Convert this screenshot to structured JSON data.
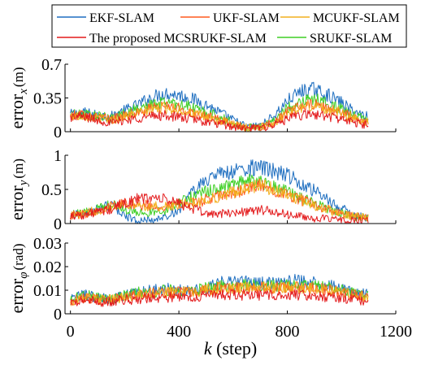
{
  "chart_data": {
    "type": "line",
    "legend": {
      "placement": "top",
      "entries": [
        {
          "label": "EKF-SLAM",
          "color": "#1f6fc0"
        },
        {
          "label": "UKF-SLAM",
          "color": "#ff5a1f"
        },
        {
          "label": "MCUKF-SLAM",
          "color": "#f2b01e"
        },
        {
          "label": "The proposed MCSRUKF-SLAM",
          "color": "#e31a1c"
        },
        {
          "label": "SRUKF-SLAM",
          "color": "#3fcf25"
        }
      ]
    },
    "x_axis": {
      "label_var": "k",
      "label_rest": " (step)",
      "range": [
        -20,
        1200
      ],
      "ticks": [
        0,
        400,
        800,
        1200
      ],
      "tick_labels": [
        "0",
        "400",
        "800",
        "1200"
      ]
    },
    "panels": [
      {
        "ylabel_main": "error",
        "ylabel_sub": "x",
        "ylabel_unit": "(m)",
        "ylim": [
          0,
          0.7
        ],
        "yticks": [
          0,
          0.35,
          0.7
        ],
        "ytick_labels": [
          "0",
          "0.35",
          "0.7"
        ],
        "x": [
          0,
          50,
          100,
          150,
          200,
          250,
          300,
          350,
          400,
          450,
          500,
          550,
          600,
          650,
          700,
          750,
          800,
          850,
          900,
          950,
          1000,
          1050,
          1100
        ],
        "series": [
          {
            "ref": "EKF-SLAM",
            "values": [
              0.18,
              0.2,
              0.17,
              0.16,
              0.22,
              0.28,
              0.36,
              0.4,
              0.38,
              0.34,
              0.28,
              0.2,
              0.12,
              0.05,
              0.06,
              0.16,
              0.32,
              0.42,
              0.44,
              0.38,
              0.3,
              0.2,
              0.16
            ]
          },
          {
            "ref": "UKF-SLAM",
            "values": [
              0.16,
              0.18,
              0.15,
              0.13,
              0.17,
              0.2,
              0.24,
              0.26,
              0.24,
              0.2,
              0.16,
              0.12,
              0.08,
              0.04,
              0.05,
              0.1,
              0.2,
              0.26,
              0.28,
              0.24,
              0.2,
              0.14,
              0.1
            ]
          },
          {
            "ref": "MCUKF-SLAM",
            "values": [
              0.16,
              0.17,
              0.14,
              0.12,
              0.16,
              0.19,
              0.23,
              0.25,
              0.23,
              0.19,
              0.15,
              0.11,
              0.07,
              0.04,
              0.05,
              0.09,
              0.19,
              0.25,
              0.27,
              0.23,
              0.19,
              0.13,
              0.1
            ]
          },
          {
            "ref": "The proposed MCSRUKF-SLAM",
            "values": [
              0.15,
              0.16,
              0.12,
              0.09,
              0.12,
              0.14,
              0.16,
              0.17,
              0.15,
              0.13,
              0.1,
              0.08,
              0.05,
              0.03,
              0.04,
              0.07,
              0.13,
              0.17,
              0.18,
              0.16,
              0.13,
              0.09,
              0.07
            ]
          },
          {
            "ref": "SRUKF-SLAM",
            "values": [
              0.17,
              0.19,
              0.16,
              0.14,
              0.19,
              0.24,
              0.28,
              0.31,
              0.29,
              0.25,
              0.2,
              0.15,
              0.09,
              0.04,
              0.05,
              0.12,
              0.24,
              0.32,
              0.34,
              0.29,
              0.23,
              0.16,
              0.12
            ]
          }
        ]
      },
      {
        "ylabel_main": "error",
        "ylabel_sub": "y",
        "ylabel_unit": "(m)",
        "ylim": [
          0,
          1
        ],
        "yticks": [
          0,
          0.5,
          1
        ],
        "ytick_labels": [
          "0",
          "0.5",
          "1"
        ],
        "x": [
          0,
          50,
          100,
          150,
          200,
          250,
          300,
          350,
          400,
          450,
          500,
          550,
          600,
          650,
          700,
          750,
          800,
          850,
          900,
          950,
          1000,
          1050,
          1100
        ],
        "series": [
          {
            "ref": "EKF-SLAM",
            "values": [
              0.12,
              0.14,
              0.2,
              0.28,
              0.12,
              0.03,
              0.05,
              0.1,
              0.2,
              0.45,
              0.65,
              0.72,
              0.76,
              0.8,
              0.82,
              0.76,
              0.7,
              0.6,
              0.48,
              0.34,
              0.22,
              0.12,
              0.08
            ]
          },
          {
            "ref": "UKF-SLAM",
            "values": [
              0.12,
              0.14,
              0.2,
              0.26,
              0.3,
              0.28,
              0.26,
              0.25,
              0.28,
              0.3,
              0.35,
              0.4,
              0.45,
              0.5,
              0.55,
              0.5,
              0.42,
              0.35,
              0.28,
              0.2,
              0.14,
              0.1,
              0.08
            ]
          },
          {
            "ref": "MCUKF-SLAM",
            "values": [
              0.12,
              0.14,
              0.2,
              0.25,
              0.3,
              0.27,
              0.25,
              0.24,
              0.27,
              0.3,
              0.34,
              0.4,
              0.46,
              0.52,
              0.56,
              0.5,
              0.42,
              0.34,
              0.27,
              0.2,
              0.14,
              0.1,
              0.08
            ]
          },
          {
            "ref": "The proposed MCSRUKF-SLAM",
            "values": [
              0.12,
              0.13,
              0.17,
              0.2,
              0.3,
              0.36,
              0.38,
              0.35,
              0.3,
              0.22,
              0.15,
              0.14,
              0.16,
              0.18,
              0.2,
              0.17,
              0.13,
              0.1,
              0.08,
              0.06,
              0.05,
              0.04,
              0.04
            ]
          },
          {
            "ref": "SRUKF-SLAM",
            "values": [
              0.13,
              0.15,
              0.22,
              0.3,
              0.22,
              0.15,
              0.17,
              0.2,
              0.3,
              0.4,
              0.46,
              0.52,
              0.58,
              0.62,
              0.6,
              0.55,
              0.46,
              0.38,
              0.3,
              0.22,
              0.15,
              0.1,
              0.08
            ]
          }
        ]
      },
      {
        "ylabel_main": "error",
        "ylabel_sub": "φ",
        "ylabel_unit": "(rad)",
        "ylim": [
          0,
          0.03
        ],
        "yticks": [
          0,
          0.01,
          0.02,
          0.03
        ],
        "ytick_labels": [
          "0",
          "0.01",
          "0.02",
          "0.03"
        ],
        "x": [
          0,
          50,
          100,
          150,
          200,
          250,
          300,
          350,
          400,
          450,
          500,
          550,
          600,
          650,
          700,
          750,
          800,
          850,
          900,
          950,
          1000,
          1050,
          1100
        ],
        "series": [
          {
            "ref": "EKF-SLAM",
            "values": [
              0.006,
              0.008,
              0.007,
              0.006,
              0.008,
              0.009,
              0.01,
              0.011,
              0.01,
              0.01,
              0.011,
              0.013,
              0.014,
              0.014,
              0.013,
              0.013,
              0.014,
              0.014,
              0.013,
              0.012,
              0.011,
              0.009,
              0.008
            ]
          },
          {
            "ref": "UKF-SLAM",
            "values": [
              0.005,
              0.007,
              0.006,
              0.006,
              0.007,
              0.008,
              0.009,
              0.009,
              0.009,
              0.009,
              0.01,
              0.011,
              0.011,
              0.011,
              0.011,
              0.011,
              0.011,
              0.011,
              0.011,
              0.01,
              0.009,
              0.008,
              0.007
            ]
          },
          {
            "ref": "MCUKF-SLAM",
            "values": [
              0.005,
              0.007,
              0.006,
              0.006,
              0.007,
              0.008,
              0.009,
              0.009,
              0.009,
              0.009,
              0.01,
              0.011,
              0.011,
              0.011,
              0.011,
              0.011,
              0.011,
              0.011,
              0.011,
              0.01,
              0.009,
              0.008,
              0.007
            ]
          },
          {
            "ref": "The proposed MCSRUKF-SLAM",
            "values": [
              0.004,
              0.006,
              0.005,
              0.005,
              0.006,
              0.006,
              0.007,
              0.007,
              0.007,
              0.007,
              0.008,
              0.008,
              0.008,
              0.008,
              0.008,
              0.008,
              0.008,
              0.008,
              0.008,
              0.007,
              0.007,
              0.006,
              0.005
            ]
          },
          {
            "ref": "SRUKF-SLAM",
            "values": [
              0.006,
              0.008,
              0.007,
              0.006,
              0.008,
              0.009,
              0.009,
              0.01,
              0.01,
              0.01,
              0.011,
              0.012,
              0.012,
              0.012,
              0.012,
              0.012,
              0.012,
              0.012,
              0.012,
              0.011,
              0.01,
              0.009,
              0.008
            ]
          }
        ]
      }
    ]
  }
}
